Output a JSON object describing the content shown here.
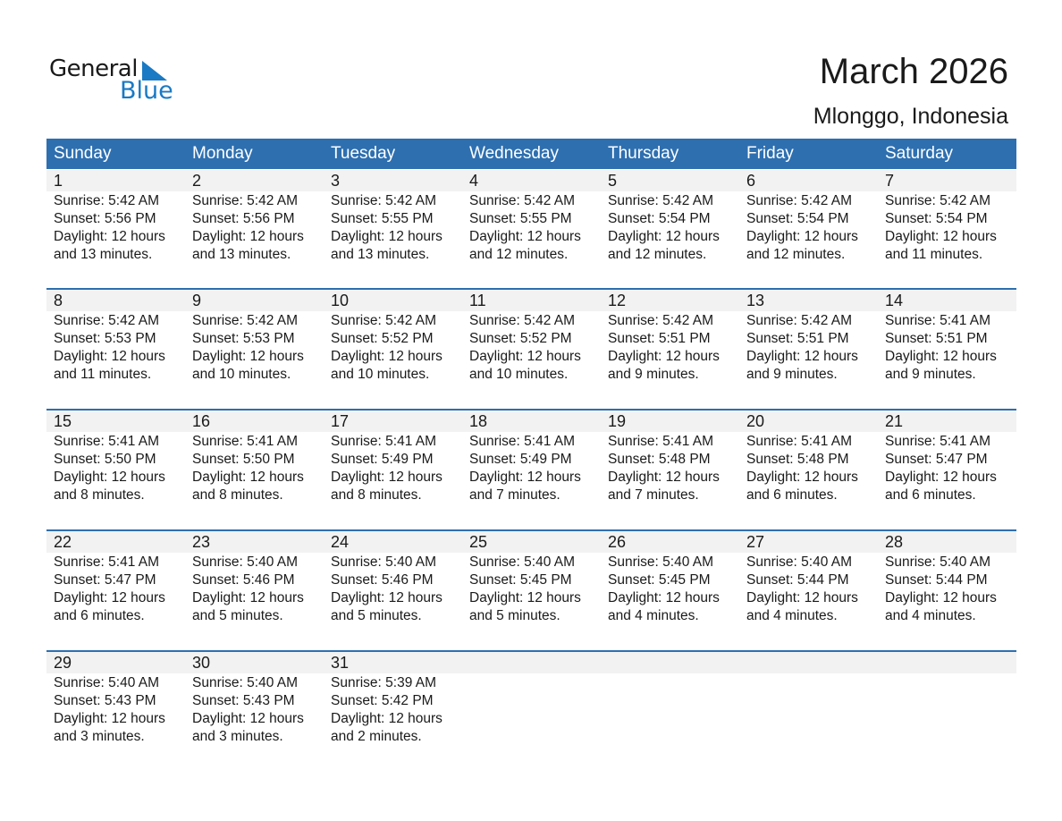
{
  "logo": {
    "word1": "General",
    "word2": "Blue",
    "accent": "#1a7ac4"
  },
  "header": {
    "title": "March 2026",
    "location": "Mlonggo, Indonesia"
  },
  "colors": {
    "header_bg": "#2e6fb0",
    "date_band": "#f2f2f2"
  },
  "weekdays": [
    "Sunday",
    "Monday",
    "Tuesday",
    "Wednesday",
    "Thursday",
    "Friday",
    "Saturday"
  ],
  "weeks": [
    [
      {
        "day": "1",
        "sunrise": "Sunrise: 5:42 AM",
        "sunset": "Sunset: 5:56 PM",
        "daylight": "Daylight: 12 hours",
        "minutes": "and 13 minutes."
      },
      {
        "day": "2",
        "sunrise": "Sunrise: 5:42 AM",
        "sunset": "Sunset: 5:56 PM",
        "daylight": "Daylight: 12 hours",
        "minutes": "and 13 minutes."
      },
      {
        "day": "3",
        "sunrise": "Sunrise: 5:42 AM",
        "sunset": "Sunset: 5:55 PM",
        "daylight": "Daylight: 12 hours",
        "minutes": "and 13 minutes."
      },
      {
        "day": "4",
        "sunrise": "Sunrise: 5:42 AM",
        "sunset": "Sunset: 5:55 PM",
        "daylight": "Daylight: 12 hours",
        "minutes": "and 12 minutes."
      },
      {
        "day": "5",
        "sunrise": "Sunrise: 5:42 AM",
        "sunset": "Sunset: 5:54 PM",
        "daylight": "Daylight: 12 hours",
        "minutes": "and 12 minutes."
      },
      {
        "day": "6",
        "sunrise": "Sunrise: 5:42 AM",
        "sunset": "Sunset: 5:54 PM",
        "daylight": "Daylight: 12 hours",
        "minutes": "and 12 minutes."
      },
      {
        "day": "7",
        "sunrise": "Sunrise: 5:42 AM",
        "sunset": "Sunset: 5:54 PM",
        "daylight": "Daylight: 12 hours",
        "minutes": "and 11 minutes."
      }
    ],
    [
      {
        "day": "8",
        "sunrise": "Sunrise: 5:42 AM",
        "sunset": "Sunset: 5:53 PM",
        "daylight": "Daylight: 12 hours",
        "minutes": "and 11 minutes."
      },
      {
        "day": "9",
        "sunrise": "Sunrise: 5:42 AM",
        "sunset": "Sunset: 5:53 PM",
        "daylight": "Daylight: 12 hours",
        "minutes": "and 10 minutes."
      },
      {
        "day": "10",
        "sunrise": "Sunrise: 5:42 AM",
        "sunset": "Sunset: 5:52 PM",
        "daylight": "Daylight: 12 hours",
        "minutes": "and 10 minutes."
      },
      {
        "day": "11",
        "sunrise": "Sunrise: 5:42 AM",
        "sunset": "Sunset: 5:52 PM",
        "daylight": "Daylight: 12 hours",
        "minutes": "and 10 minutes."
      },
      {
        "day": "12",
        "sunrise": "Sunrise: 5:42 AM",
        "sunset": "Sunset: 5:51 PM",
        "daylight": "Daylight: 12 hours",
        "minutes": "and 9 minutes."
      },
      {
        "day": "13",
        "sunrise": "Sunrise: 5:42 AM",
        "sunset": "Sunset: 5:51 PM",
        "daylight": "Daylight: 12 hours",
        "minutes": "and 9 minutes."
      },
      {
        "day": "14",
        "sunrise": "Sunrise: 5:41 AM",
        "sunset": "Sunset: 5:51 PM",
        "daylight": "Daylight: 12 hours",
        "minutes": "and 9 minutes."
      }
    ],
    [
      {
        "day": "15",
        "sunrise": "Sunrise: 5:41 AM",
        "sunset": "Sunset: 5:50 PM",
        "daylight": "Daylight: 12 hours",
        "minutes": "and 8 minutes."
      },
      {
        "day": "16",
        "sunrise": "Sunrise: 5:41 AM",
        "sunset": "Sunset: 5:50 PM",
        "daylight": "Daylight: 12 hours",
        "minutes": "and 8 minutes."
      },
      {
        "day": "17",
        "sunrise": "Sunrise: 5:41 AM",
        "sunset": "Sunset: 5:49 PM",
        "daylight": "Daylight: 12 hours",
        "minutes": "and 8 minutes."
      },
      {
        "day": "18",
        "sunrise": "Sunrise: 5:41 AM",
        "sunset": "Sunset: 5:49 PM",
        "daylight": "Daylight: 12 hours",
        "minutes": "and 7 minutes."
      },
      {
        "day": "19",
        "sunrise": "Sunrise: 5:41 AM",
        "sunset": "Sunset: 5:48 PM",
        "daylight": "Daylight: 12 hours",
        "minutes": "and 7 minutes."
      },
      {
        "day": "20",
        "sunrise": "Sunrise: 5:41 AM",
        "sunset": "Sunset: 5:48 PM",
        "daylight": "Daylight: 12 hours",
        "minutes": "and 6 minutes."
      },
      {
        "day": "21",
        "sunrise": "Sunrise: 5:41 AM",
        "sunset": "Sunset: 5:47 PM",
        "daylight": "Daylight: 12 hours",
        "minutes": "and 6 minutes."
      }
    ],
    [
      {
        "day": "22",
        "sunrise": "Sunrise: 5:41 AM",
        "sunset": "Sunset: 5:47 PM",
        "daylight": "Daylight: 12 hours",
        "minutes": "and 6 minutes."
      },
      {
        "day": "23",
        "sunrise": "Sunrise: 5:40 AM",
        "sunset": "Sunset: 5:46 PM",
        "daylight": "Daylight: 12 hours",
        "minutes": "and 5 minutes."
      },
      {
        "day": "24",
        "sunrise": "Sunrise: 5:40 AM",
        "sunset": "Sunset: 5:46 PM",
        "daylight": "Daylight: 12 hours",
        "minutes": "and 5 minutes."
      },
      {
        "day": "25",
        "sunrise": "Sunrise: 5:40 AM",
        "sunset": "Sunset: 5:45 PM",
        "daylight": "Daylight: 12 hours",
        "minutes": "and 5 minutes."
      },
      {
        "day": "26",
        "sunrise": "Sunrise: 5:40 AM",
        "sunset": "Sunset: 5:45 PM",
        "daylight": "Daylight: 12 hours",
        "minutes": "and 4 minutes."
      },
      {
        "day": "27",
        "sunrise": "Sunrise: 5:40 AM",
        "sunset": "Sunset: 5:44 PM",
        "daylight": "Daylight: 12 hours",
        "minutes": "and 4 minutes."
      },
      {
        "day": "28",
        "sunrise": "Sunrise: 5:40 AM",
        "sunset": "Sunset: 5:44 PM",
        "daylight": "Daylight: 12 hours",
        "minutes": "and 4 minutes."
      }
    ],
    [
      {
        "day": "29",
        "sunrise": "Sunrise: 5:40 AM",
        "sunset": "Sunset: 5:43 PM",
        "daylight": "Daylight: 12 hours",
        "minutes": "and 3 minutes."
      },
      {
        "day": "30",
        "sunrise": "Sunrise: 5:40 AM",
        "sunset": "Sunset: 5:43 PM",
        "daylight": "Daylight: 12 hours",
        "minutes": "and 3 minutes."
      },
      {
        "day": "31",
        "sunrise": "Sunrise: 5:39 AM",
        "sunset": "Sunset: 5:42 PM",
        "daylight": "Daylight: 12 hours",
        "minutes": "and 2 minutes."
      },
      null,
      null,
      null,
      null
    ]
  ]
}
